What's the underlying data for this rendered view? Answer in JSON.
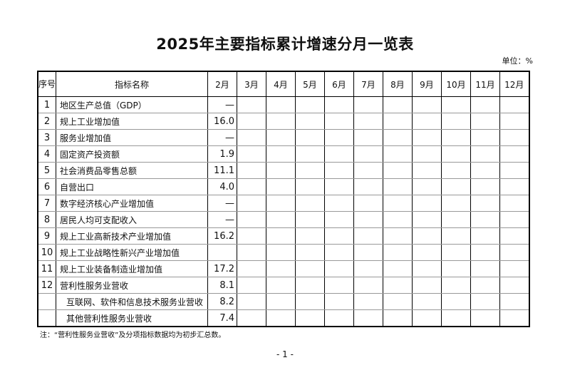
{
  "title": "2025年主要指标累计增速分月一览表",
  "unit": "单位：%",
  "headers": {
    "seq": "序号",
    "name": "指标名称",
    "months": [
      "2月",
      "3月",
      "4月",
      "5月",
      "6月",
      "7月",
      "8月",
      "9月",
      "10月",
      "11月",
      "12月"
    ]
  },
  "rows": [
    {
      "seq": "1",
      "name": "地区生产总值（GDP）",
      "feb": "—"
    },
    {
      "seq": "2",
      "name": "规上工业增加值",
      "feb": "16.0"
    },
    {
      "seq": "3",
      "name": "服务业增加值",
      "feb": "—"
    },
    {
      "seq": "4",
      "name": "固定资产投资额",
      "feb": "1.9"
    },
    {
      "seq": "5",
      "name": "社会消费品零售总额",
      "feb": "11.1"
    },
    {
      "seq": "6",
      "name": "自营出口",
      "feb": "4.0"
    },
    {
      "seq": "7",
      "name": "数字经济核心产业增加值",
      "feb": "—"
    },
    {
      "seq": "8",
      "name": "居民人均可支配收入",
      "feb": "—"
    },
    {
      "seq": "9",
      "name": "规上工业高新技术产业增加值",
      "feb": "16.2"
    },
    {
      "seq": "10",
      "name": "规上工业战略性新兴产业增加值",
      "feb": ""
    },
    {
      "seq": "11",
      "name": "规上工业装备制造业增加值",
      "feb": "17.2"
    },
    {
      "seq": "12",
      "name": "营利性服务业营收",
      "feb": "8.1"
    },
    {
      "seq": "",
      "name": "互联网、软件和信息技术服务业营收",
      "feb": "8.2",
      "sub": true
    },
    {
      "seq": "",
      "name": "其他营利性服务业营收",
      "feb": "7.4",
      "sub": true
    }
  ],
  "note": "注：“营利性服务业营收”及分项指标数据均为初步汇总数。",
  "page": "- 1 -"
}
